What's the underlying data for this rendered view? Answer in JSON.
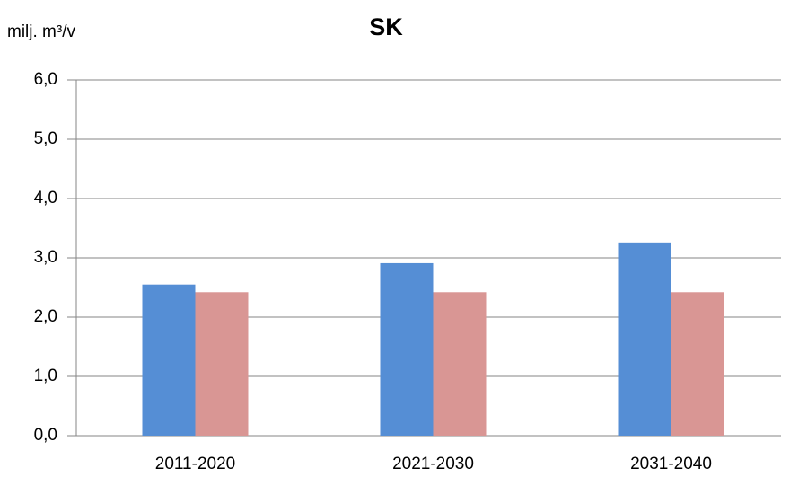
{
  "chart_data": {
    "type": "bar",
    "title": "SK",
    "y_label": "milj. m³/v",
    "categories": [
      "2011-2020",
      "2021-2030",
      "2031-2040"
    ],
    "series": [
      {
        "color": "#558ed5",
        "values": [
          2.55,
          2.91,
          3.26
        ]
      },
      {
        "color": "#d99694",
        "values": [
          2.42,
          2.42,
          2.42
        ]
      }
    ],
    "ylim": [
      0,
      6
    ],
    "yticks": [
      {
        "value": 0,
        "label": "0,0"
      },
      {
        "value": 1,
        "label": "1,0"
      },
      {
        "value": 2,
        "label": "2,0"
      },
      {
        "value": 3,
        "label": "3,0"
      },
      {
        "value": 4,
        "label": "4,0"
      },
      {
        "value": 5,
        "label": "5,0"
      },
      {
        "value": 6,
        "label": "6,0"
      }
    ],
    "grid": true
  }
}
